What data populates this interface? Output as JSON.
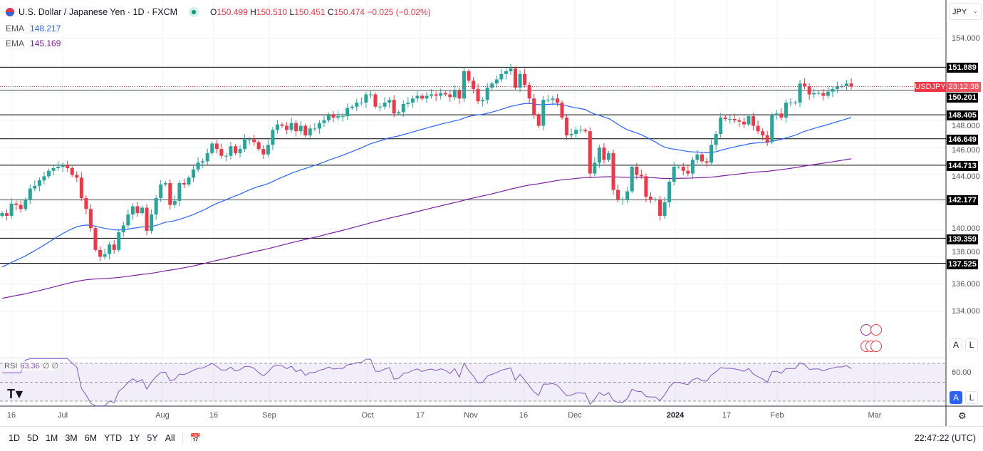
{
  "header": {
    "title": "U.S. Dollar / Japanese Yen · 1D · FXCM",
    "open_label": "O",
    "open": "150.499",
    "high_label": "H",
    "high": "150.510",
    "low_label": "L",
    "low": "150.451",
    "close_label": "C",
    "close": "150.474",
    "change": "−0.025 (−0.02%)"
  },
  "indicators": [
    {
      "label": "EMA",
      "value": "148.217",
      "color": "#2962ff"
    },
    {
      "label": "EMA",
      "value": "145.169",
      "color": "#7b1fa2"
    }
  ],
  "currency_select": "JPY",
  "price_axis": [
    "154.000",
    "148.000",
    "146.000",
    "144.000",
    "140.000",
    "138.000",
    "136.000",
    "134.000"
  ],
  "levels": [
    "151.889",
    "150.201",
    "148.405",
    "146.649",
    "144.713",
    "142.177",
    "139.359",
    "137.525"
  ],
  "current": {
    "symbol": "USDJPY",
    "countdown": "23:12:38"
  },
  "rsi": {
    "label": "RSI",
    "value": "63.36",
    "extra": "∅ ∅",
    "axis": "60.00"
  },
  "time_axis": [
    "16",
    "Jul",
    "Aug",
    "16",
    "Sep",
    "Oct",
    "17",
    "Nov",
    "16",
    "Dec",
    "2024",
    "17",
    "Feb",
    "Mar"
  ],
  "ranges": [
    "1D",
    "5D",
    "1M",
    "3M",
    "6M",
    "YTD",
    "1Y",
    "5Y",
    "All"
  ],
  "clock": "22:47:22 (UTC)",
  "buttons": {
    "auto": "A",
    "log": "L"
  },
  "colors": {
    "up": "#26a69a",
    "down": "#f23645",
    "ema_fast": "#2962ff",
    "ema_slow": "#7b1fa2",
    "rsi": "#7e57c2"
  },
  "chart_data": {
    "type": "candlestick",
    "symbol": "USDJPY",
    "interval": "1D",
    "ylim": [
      133,
      155
    ],
    "closes": [
      141.2,
      141.0,
      141.9,
      141.8,
      141.5,
      142.2,
      143.0,
      143.2,
      143.6,
      143.9,
      144.3,
      144.5,
      144.6,
      144.7,
      144.5,
      144.0,
      143.8,
      142.3,
      141.5,
      140.1,
      138.5,
      138.0,
      138.2,
      138.9,
      138.5,
      139.8,
      140.3,
      141.1,
      141.7,
      141.2,
      141.6,
      139.9,
      141.1,
      142.3,
      143.3,
      143.4,
      141.8,
      142.1,
      143.4,
      143.3,
      143.8,
      144.4,
      144.9,
      145.0,
      145.6,
      146.3,
      145.9,
      145.4,
      145.4,
      146.1,
      145.6,
      145.9,
      146.6,
      146.6,
      146.4,
      145.9,
      145.5,
      146.2,
      147.3,
      147.7,
      147.6,
      147.3,
      147.8,
      147.2,
      147.6,
      146.9,
      147.4,
      147.4,
      147.8,
      148.0,
      148.4,
      148.2,
      148.3,
      148.3,
      148.9,
      149.0,
      149.3,
      149.3,
      149.9,
      149.9,
      149.0,
      149.0,
      149.3,
      149.5,
      148.5,
      148.6,
      149.2,
      149.3,
      149.6,
      149.8,
      149.6,
      149.8,
      149.9,
      149.8,
      150.0,
      149.9,
      149.7,
      150.2,
      149.6,
      151.6,
      150.9,
      150.3,
      149.4,
      149.5,
      150.4,
      150.7,
      151.0,
      151.4,
      151.6,
      151.8,
      150.4,
      151.4,
      150.6,
      149.6,
      148.4,
      147.6,
      149.5,
      149.5,
      149.6,
      149.3,
      148.2,
      146.9,
      147.0,
      147.3,
      147.3,
      147.2,
      144.1,
      144.9,
      146.0,
      145.1,
      145.6,
      142.9,
      142.2,
      142.2,
      142.8,
      144.6,
      144.0,
      143.9,
      142.4,
      142.2,
      142.2,
      141.0,
      142.0,
      143.5,
      144.6,
      144.6,
      144.3,
      144.1,
      145.1,
      145.5,
      145.0,
      144.9,
      146.2,
      147.0,
      148.2,
      148.1,
      148.1,
      148.0,
      147.9,
      147.7,
      148.3,
      147.6,
      147.2,
      146.9,
      146.4,
      148.4,
      148.5,
      148.2,
      149.3,
      149.3,
      149.3,
      150.7,
      150.5,
      149.9,
      150.0,
      150.0,
      149.8,
      150.1,
      150.3,
      150.5,
      150.5,
      150.7,
      150.47
    ]
  }
}
